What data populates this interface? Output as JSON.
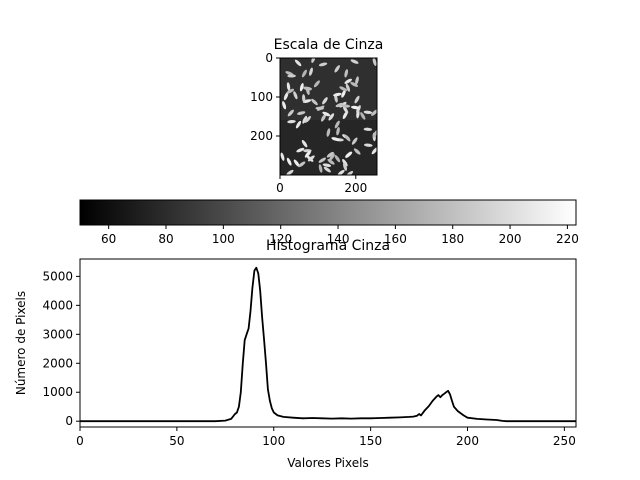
{
  "figure": {
    "image_panel": {
      "title": "Escala de Cinza",
      "content": "rice-grains-grayscale",
      "x_ticks": [
        0,
        200
      ],
      "y_ticks": [
        0,
        100,
        200
      ],
      "x_range": [
        0,
        256
      ],
      "y_range": [
        0,
        300
      ]
    },
    "colorbar": {
      "colormap": "gray",
      "range": [
        50,
        223
      ],
      "ticks": [
        60,
        80,
        100,
        120,
        140,
        160,
        180,
        200,
        220
      ]
    }
  },
  "chart_data": {
    "type": "line",
    "title": "Histograma Cinza",
    "xlabel": "Valores Pixels",
    "ylabel": "Número de Pixels",
    "xlim": [
      0,
      256
    ],
    "ylim": [
      -200,
      5600
    ],
    "x_ticks": [
      0,
      50,
      100,
      150,
      200,
      250
    ],
    "y_ticks": [
      0,
      1000,
      2000,
      3000,
      4000,
      5000
    ],
    "grid": false,
    "color": "#000000",
    "x": [
      0,
      70,
      75,
      78,
      80,
      81,
      82,
      83,
      84,
      85,
      86,
      87,
      88,
      89,
      90,
      91,
      92,
      93,
      94,
      95,
      96,
      97,
      98,
      99,
      100,
      102,
      105,
      110,
      115,
      120,
      125,
      130,
      135,
      140,
      145,
      150,
      155,
      160,
      165,
      170,
      172,
      174,
      175,
      176,
      178,
      180,
      182,
      184,
      185,
      186,
      187,
      188,
      189,
      190,
      191,
      192,
      193,
      195,
      198,
      200,
      205,
      210,
      215,
      218,
      220,
      225,
      230,
      240,
      250,
      256
    ],
    "values": [
      0,
      0,
      20,
      80,
      250,
      300,
      500,
      1000,
      2000,
      2800,
      3000,
      3200,
      3800,
      4600,
      5200,
      5300,
      5100,
      4500,
      3600,
      2800,
      2000,
      1100,
      700,
      450,
      300,
      200,
      150,
      120,
      100,
      110,
      100,
      90,
      100,
      90,
      100,
      100,
      110,
      120,
      130,
      150,
      160,
      190,
      250,
      200,
      380,
      520,
      700,
      850,
      900,
      830,
      900,
      950,
      1000,
      1050,
      920,
      700,
      500,
      350,
      200,
      120,
      80,
      60,
      40,
      10,
      0,
      0,
      0,
      0,
      0,
      0
    ]
  }
}
